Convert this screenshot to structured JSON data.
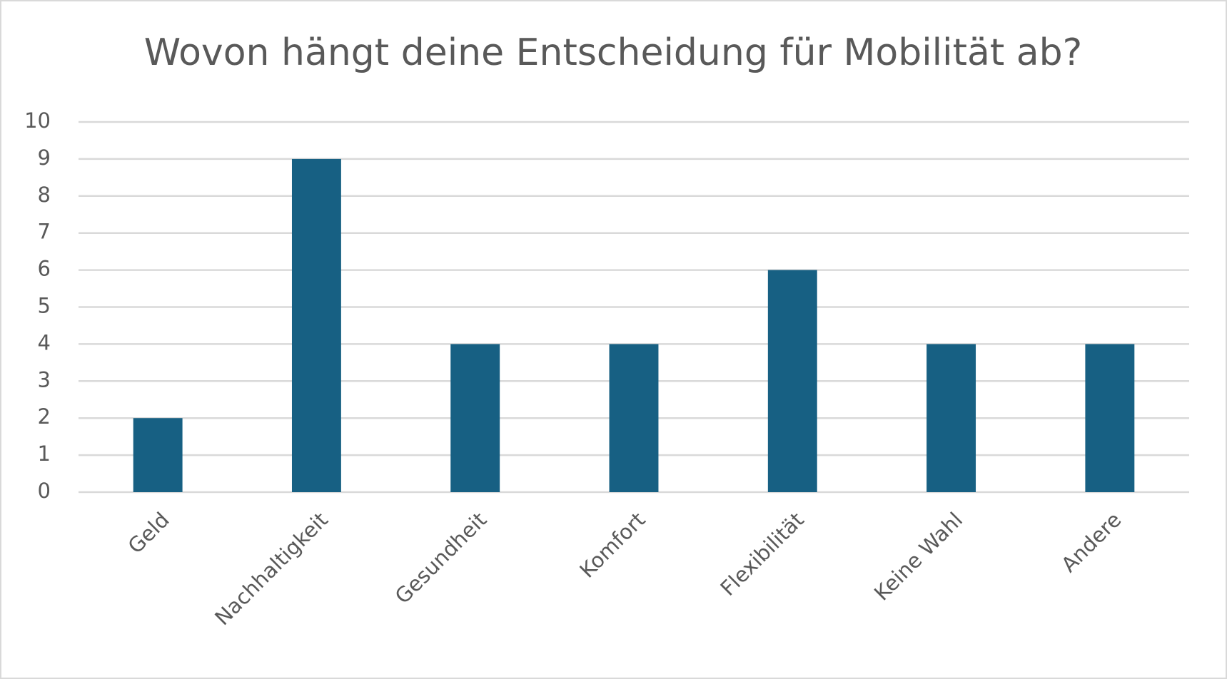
{
  "chart_data": {
    "type": "bar",
    "title": "Wovon hängt deine Entscheidung für Mobilität ab?",
    "categories": [
      "Geld",
      "Nachhaltigkeit",
      "Gesundheit",
      "Komfort",
      "Flexibilität",
      "Keine Wahl",
      "Andere"
    ],
    "values": [
      2,
      9,
      4,
      4,
      6,
      4,
      4
    ],
    "color": "#176083",
    "ylim": [
      0,
      10
    ],
    "yticks": [
      0,
      1,
      2,
      3,
      4,
      5,
      6,
      7,
      8,
      9,
      10
    ],
    "grid": true
  }
}
